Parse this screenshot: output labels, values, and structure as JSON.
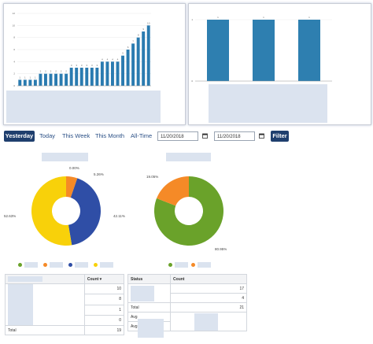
{
  "charts": {
    "left_bar": {
      "type": "bar",
      "ylim": [
        0,
        12
      ],
      "yticks": [
        "0",
        "2",
        "4",
        "6",
        "8",
        "10",
        "12"
      ],
      "values": [
        1,
        1,
        1,
        1,
        2,
        2,
        2,
        2,
        2,
        2,
        3,
        3,
        3,
        3,
        3,
        3,
        4,
        4,
        4,
        4,
        5,
        6,
        7,
        8,
        9,
        10
      ],
      "bar_color": "#2a7bb0"
    },
    "right_bar": {
      "type": "bar",
      "ylim": [
        0,
        1
      ],
      "yticks": [
        "0",
        "1"
      ],
      "values": [
        1,
        1,
        1
      ],
      "bar_color": "#2e7fb0"
    }
  },
  "filter": {
    "yesterday": "Yesterday",
    "today": "Today",
    "this_week": "This Week",
    "this_month": "This Month",
    "all_time": "All-Time",
    "date_from": "11/20/2018",
    "date_to": "11/20/2018",
    "filter_label": "Filter"
  },
  "chart_data": [
    {
      "type": "pie",
      "labels": [
        "",
        "",
        "",
        ""
      ],
      "values": [
        0.0,
        5.26,
        42.11,
        52.63
      ],
      "value_labels": [
        "0.00%",
        "5.26%",
        "42.11%",
        "52.63%"
      ],
      "colors": [
        "#6aa22a",
        "#f58a27",
        "#2f4ea6",
        "#f8d10a"
      ]
    },
    {
      "type": "pie",
      "labels": [
        "",
        ""
      ],
      "values": [
        80.95,
        19.05
      ],
      "value_labels": [
        "80.95%",
        "19.05%"
      ],
      "colors": [
        "#6aa22a",
        "#f58a27"
      ]
    }
  ],
  "left_table": {
    "count_header": "Count",
    "rows": [
      "10",
      "8",
      "1",
      "0"
    ],
    "total_label": "Total",
    "total_value": "19"
  },
  "right_table": {
    "status_header": "Status",
    "count_header": "Count",
    "rows": [
      "17",
      "4"
    ],
    "total_label": "Total",
    "total_value": "21",
    "avg1_label": "Avg",
    "avg2_label": "Avg"
  }
}
